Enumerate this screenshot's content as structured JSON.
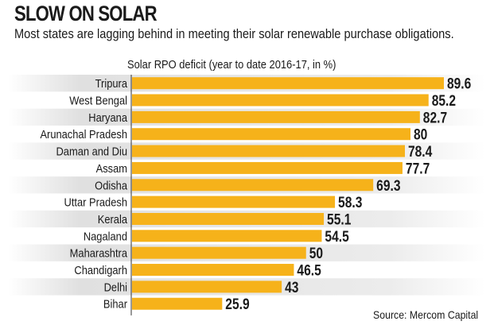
{
  "header": {
    "title": "SLOW ON SOLAR",
    "subtitle": "Most states are lagging behind in meeting their solar renewable purchase obligations.",
    "source": "Source: Mercom Capital"
  },
  "chart_data": {
    "type": "bar",
    "orientation": "horizontal",
    "title": "SLOW ON SOLAR",
    "xlabel": "Solar RPO deficit (year to date 2016-17, in %)",
    "categories": [
      "Tripura",
      "West Bengal",
      "Haryana",
      "Arunachal Pradesh",
      "Daman and Diu",
      "Assam",
      "Odisha",
      "Uttar Pradesh",
      "Kerala",
      "Nagaland",
      "Maharashtra",
      "Chandigarh",
      "Delhi",
      "Bihar"
    ],
    "values": [
      89.6,
      85.2,
      82.7,
      80,
      78.4,
      77.7,
      69.3,
      58.3,
      55.1,
      54.5,
      50,
      46.5,
      43,
      25.9
    ],
    "labels": [
      "89.6",
      "85.2",
      "82.7",
      "80",
      "78.4",
      "77.7",
      "69.3",
      "58.3",
      "55.1",
      "54.5",
      "50",
      "46.5",
      "43",
      "25.9"
    ],
    "xlim": [
      0,
      100
    ],
    "grid": false,
    "colors": {
      "bar": "#f6b21a",
      "band": "#e2e2e2",
      "text": "#1a1a1a"
    }
  }
}
